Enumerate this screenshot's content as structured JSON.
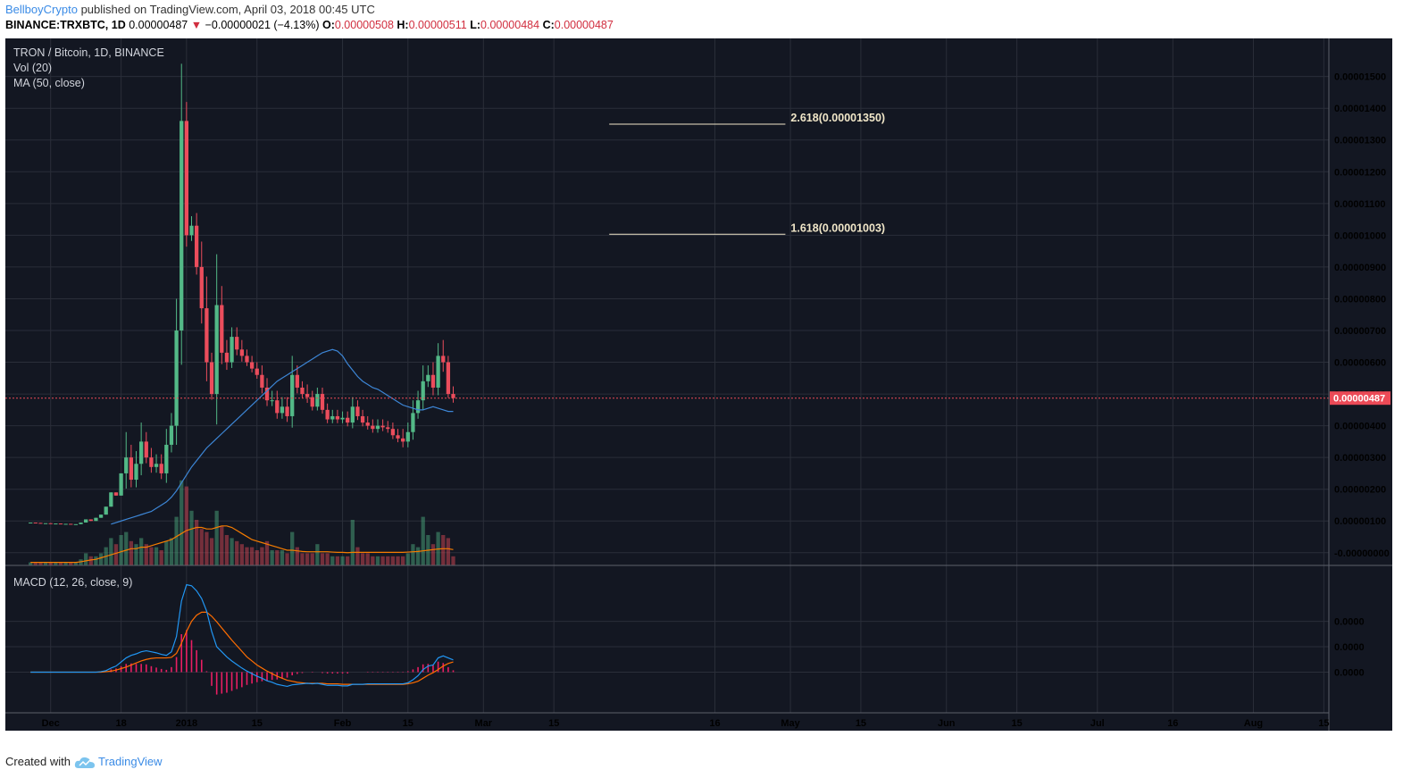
{
  "header": {
    "author": "BellboyCrypto",
    "published_text": "published on TradingView.com, April 03, 2018 00:45 UTC"
  },
  "ohlc_bar": {
    "symbol": "BINANCE:TRXBTC, 1D",
    "last": "0.00000487",
    "change": "−0.00000021 (−4.13%)",
    "o_label": "O:",
    "o": "0.00000508",
    "h_label": "H:",
    "h": "0.00000511",
    "l_label": "L:",
    "l": "0.00000484",
    "c_label": "C:",
    "c": "0.00000487"
  },
  "footer": {
    "created_with": "Created with",
    "brand": "TradingView"
  },
  "colors": {
    "background": "#131722",
    "grid": "#2a2e39",
    "up": "#53b987",
    "down": "#eb4d5c",
    "ma": "#3d86d6",
    "vol_ma": "#f57c00",
    "macd": "#2196f3",
    "signal": "#ff6d00",
    "hist": "#e91e63",
    "fib": "#f0e6c8",
    "price_tag": "#ec4a57"
  },
  "chart_data": {
    "type": "candlestick",
    "title": "TRON / Bitcoin, 1D, BINANCE",
    "indicator_labels": [
      "Vol (20)",
      "MA (50, close)"
    ],
    "macd_label": "MACD (12, 26, close, 9)",
    "last_price_label": "0.00000487",
    "y_axis_ticks": [
      "0.00001500",
      "0.00001400",
      "0.00001300",
      "0.00001200",
      "0.00001100",
      "0.00001000",
      "0.00000900",
      "0.00000800",
      "0.00000700",
      "0.00000600",
      "0.00000500",
      "0.00000400",
      "0.00000300",
      "0.00000200",
      "0.00000100",
      "-0.00000000"
    ],
    "y_axis_values": [
      15,
      14,
      13,
      12,
      11,
      10,
      9,
      8,
      7,
      6,
      5,
      4,
      3,
      2,
      1,
      0
    ],
    "y_unit": "1e-6 BTC",
    "ylim": [
      -0.4,
      16.2
    ],
    "macd_ticks": [
      "0.0000",
      "0.0000",
      "0.0000"
    ],
    "x_ticks": [
      {
        "label": "Dec",
        "day": 4
      },
      {
        "label": "18",
        "day": 18
      },
      {
        "label": "2018",
        "day": 31
      },
      {
        "label": "15",
        "day": 45
      },
      {
        "label": "Feb",
        "day": 62
      },
      {
        "label": "15",
        "day": 75
      },
      {
        "label": "Mar",
        "day": 90
      },
      {
        "label": "15",
        "day": 104
      },
      {
        "label": "16",
        "day": 136
      },
      {
        "label": "May",
        "day": 151
      },
      {
        "label": "15",
        "day": 165
      },
      {
        "label": "Jun",
        "day": 182
      },
      {
        "label": "15",
        "day": 196
      },
      {
        "label": "Jul",
        "day": 212
      },
      {
        "label": "16",
        "day": 227
      },
      {
        "label": "Aug",
        "day": 243
      },
      {
        "label": "15",
        "day": 257
      }
    ],
    "xlim_days": [
      -5,
      258
    ],
    "fib_levels": [
      {
        "label": "2.618(0.00001350)",
        "value": 13.5,
        "from_day": 115,
        "to_day": 150
      },
      {
        "label": "1.618(0.00001003)",
        "value": 10.03,
        "from_day": 115,
        "to_day": 150
      }
    ],
    "x_start_date": "2017-11-26",
    "closes": [
      0.95,
      0.94,
      0.93,
      0.93,
      0.92,
      0.92,
      0.91,
      0.91,
      0.9,
      0.9,
      0.95,
      1.05,
      1.0,
      1.1,
      1.2,
      1.45,
      1.9,
      1.8,
      2.5,
      3.0,
      2.3,
      2.8,
      3.5,
      3.0,
      2.7,
      2.8,
      2.5,
      3.4,
      4.0,
      7.0,
      13.6,
      10.0,
      10.3,
      9.0,
      7.7,
      6.0,
      5.0,
      7.8,
      6.3,
      6.0,
      6.8,
      6.4,
      6.2,
      6.0,
      5.8,
      5.6,
      5.2,
      4.8,
      4.8,
      4.4,
      4.6,
      4.3,
      5.6,
      5.2,
      5.0,
      4.9,
      4.6,
      5.0,
      4.5,
      4.2,
      4.3,
      4.2,
      4.25,
      4.1,
      4.6,
      4.3,
      4.1,
      4.0,
      3.9,
      4.0,
      3.95,
      3.9,
      3.7,
      3.6,
      3.5,
      3.8,
      4.4,
      4.8,
      5.4,
      5.6,
      5.2,
      6.2,
      6.0,
      5.0,
      4.87
    ],
    "highs_extra": [
      0,
      0,
      0,
      0,
      0,
      0,
      0,
      0,
      0,
      0,
      0,
      0,
      0,
      0,
      0,
      0,
      0,
      0,
      0,
      0.8,
      0.4,
      0.4,
      0.6,
      0.3,
      0.3,
      0.3,
      0.3,
      0.5,
      0.4,
      1.0,
      1.8,
      0.6,
      0.3,
      0.4,
      0.8,
      1.0,
      0.3,
      1.6,
      0.6,
      0.4,
      0.3,
      0.3,
      0.3,
      0.2,
      0.2,
      0.2,
      0.3,
      0.3,
      0.3,
      0.3,
      0.3,
      0.3,
      0.6,
      0.3,
      0.2,
      0.3,
      0.2,
      0.2,
      0.2,
      0.2,
      0.2,
      0.2,
      0.2,
      0.2,
      0.3,
      0.2,
      0.2,
      0.2,
      0.2,
      0.2,
      0.2,
      0.2,
      0.2,
      0.2,
      0.3,
      0.3,
      0.4,
      0.3,
      0.5,
      0.3,
      0.4,
      0.4,
      0.5,
      0.2,
      0.24
    ],
    "volumes": [
      0.1,
      0.1,
      0.1,
      0.1,
      0.1,
      0.1,
      0.1,
      0.1,
      0.1,
      0.1,
      0.2,
      0.4,
      0.3,
      0.3,
      0.4,
      0.6,
      0.9,
      0.7,
      1.0,
      1.1,
      0.8,
      0.7,
      0.9,
      0.7,
      0.6,
      0.6,
      0.5,
      0.8,
      0.9,
      1.6,
      2.8,
      2.6,
      1.8,
      1.5,
      1.2,
      1.1,
      0.9,
      1.8,
      1.3,
      1.0,
      0.9,
      0.8,
      0.7,
      0.6,
      0.6,
      0.5,
      0.6,
      0.8,
      0.5,
      0.5,
      0.5,
      0.4,
      1.1,
      0.6,
      0.4,
      0.4,
      0.4,
      0.7,
      0.4,
      0.4,
      0.3,
      0.3,
      0.3,
      0.3,
      1.5,
      0.6,
      0.4,
      0.4,
      0.3,
      0.3,
      0.3,
      0.3,
      0.3,
      0.3,
      0.3,
      0.4,
      0.7,
      0.6,
      1.6,
      1.0,
      0.7,
      1.1,
      1.0,
      0.9,
      0.3
    ],
    "ma50": [
      null,
      null,
      null,
      null,
      null,
      null,
      null,
      null,
      null,
      null,
      null,
      null,
      null,
      null,
      null,
      null,
      0.9,
      0.95,
      1.0,
      1.05,
      1.1,
      1.15,
      1.2,
      1.25,
      1.3,
      1.4,
      1.5,
      1.6,
      1.75,
      1.95,
      2.2,
      2.45,
      2.7,
      2.9,
      3.1,
      3.3,
      3.45,
      3.6,
      3.75,
      3.9,
      4.05,
      4.2,
      4.35,
      4.5,
      4.65,
      4.8,
      4.95,
      5.1,
      5.25,
      5.4,
      5.5,
      5.6,
      5.7,
      5.8,
      5.9,
      6.0,
      6.1,
      6.2,
      6.3,
      6.35,
      6.4,
      6.35,
      6.2,
      5.95,
      5.75,
      5.55,
      5.4,
      5.3,
      5.2,
      5.15,
      5.05,
      4.95,
      4.85,
      4.75,
      4.65,
      4.6,
      4.55,
      4.5,
      4.5,
      4.55,
      4.6,
      4.55,
      4.5,
      4.45,
      4.45
    ],
    "vol_ma": [
      0.1,
      0.1,
      0.1,
      0.1,
      0.1,
      0.1,
      0.1,
      0.1,
      0.1,
      0.1,
      0.12,
      0.15,
      0.18,
      0.2,
      0.25,
      0.3,
      0.35,
      0.4,
      0.45,
      0.5,
      0.55,
      0.55,
      0.6,
      0.6,
      0.65,
      0.7,
      0.75,
      0.8,
      0.85,
      0.95,
      1.05,
      1.15,
      1.2,
      1.25,
      1.25,
      1.2,
      1.2,
      1.25,
      1.3,
      1.3,
      1.25,
      1.15,
      1.05,
      0.95,
      0.85,
      0.8,
      0.75,
      0.7,
      0.65,
      0.6,
      0.55,
      0.5,
      0.5,
      0.48,
      0.46,
      0.45,
      0.45,
      0.45,
      0.45,
      0.45,
      0.44,
      0.43,
      0.43,
      0.42,
      0.43,
      0.43,
      0.43,
      0.43,
      0.43,
      0.43,
      0.43,
      0.43,
      0.43,
      0.43,
      0.43,
      0.44,
      0.45,
      0.46,
      0.48,
      0.5,
      0.52,
      0.54,
      0.55,
      0.55,
      0.52
    ],
    "macd": [
      0,
      0,
      0,
      0,
      0,
      0,
      0,
      0,
      0,
      0,
      0,
      0,
      0,
      0,
      0.01,
      0.03,
      0.08,
      0.12,
      0.2,
      0.28,
      0.33,
      0.36,
      0.4,
      0.42,
      0.4,
      0.38,
      0.35,
      0.33,
      0.4,
      0.7,
      1.4,
      1.72,
      1.7,
      1.6,
      1.45,
      1.2,
      0.8,
      0.5,
      0.4,
      0.3,
      0.22,
      0.15,
      0.08,
      0.02,
      -0.03,
      -0.08,
      -0.12,
      -0.17,
      -0.2,
      -0.24,
      -0.26,
      -0.28,
      -0.25,
      -0.24,
      -0.23,
      -0.22,
      -0.23,
      -0.22,
      -0.24,
      -0.26,
      -0.26,
      -0.26,
      -0.27,
      -0.27,
      -0.24,
      -0.24,
      -0.24,
      -0.23,
      -0.23,
      -0.23,
      -0.23,
      -0.23,
      -0.23,
      -0.23,
      -0.23,
      -0.21,
      -0.15,
      -0.07,
      0.05,
      0.12,
      0.14,
      0.28,
      0.32,
      0.28,
      0.24
    ],
    "signal": [
      0,
      0,
      0,
      0,
      0,
      0,
      0,
      0,
      0,
      0,
      0,
      0,
      0,
      0,
      0,
      0.01,
      0.02,
      0.04,
      0.07,
      0.1,
      0.14,
      0.18,
      0.22,
      0.25,
      0.27,
      0.28,
      0.28,
      0.28,
      0.29,
      0.37,
      0.57,
      0.8,
      1.0,
      1.12,
      1.18,
      1.18,
      1.1,
      0.99,
      0.87,
      0.75,
      0.63,
      0.52,
      0.41,
      0.3,
      0.22,
      0.14,
      0.08,
      0.02,
      -0.03,
      -0.08,
      -0.12,
      -0.16,
      -0.18,
      -0.2,
      -0.21,
      -0.22,
      -0.22,
      -0.22,
      -0.22,
      -0.23,
      -0.23,
      -0.23,
      -0.24,
      -0.24,
      -0.24,
      -0.24,
      -0.24,
      -0.24,
      -0.24,
      -0.24,
      -0.24,
      -0.24,
      -0.24,
      -0.24,
      -0.24,
      -0.23,
      -0.21,
      -0.18,
      -0.12,
      -0.06,
      -0.01,
      0.05,
      0.12,
      0.17,
      0.2
    ],
    "macd_ylim": [
      -0.8,
      2.1
    ],
    "macd_axis_values": [
      1.0,
      0.5,
      0.0
    ]
  }
}
